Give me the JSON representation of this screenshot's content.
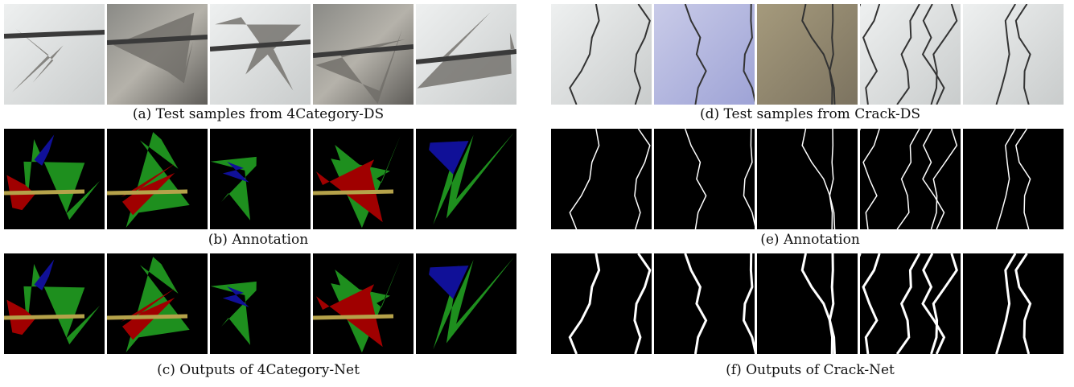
{
  "panels": [
    {
      "caption": "(a) Test samples from 4Category-DS"
    },
    {
      "caption": "(b) Annotation"
    },
    {
      "caption": "(c) Outputs of 4Category-Net"
    },
    {
      "caption": "(d) Test samples from Crack-DS"
    },
    {
      "caption": "(e) Annotation"
    },
    {
      "caption": "(f) Outputs of Crack-Net"
    }
  ]
}
